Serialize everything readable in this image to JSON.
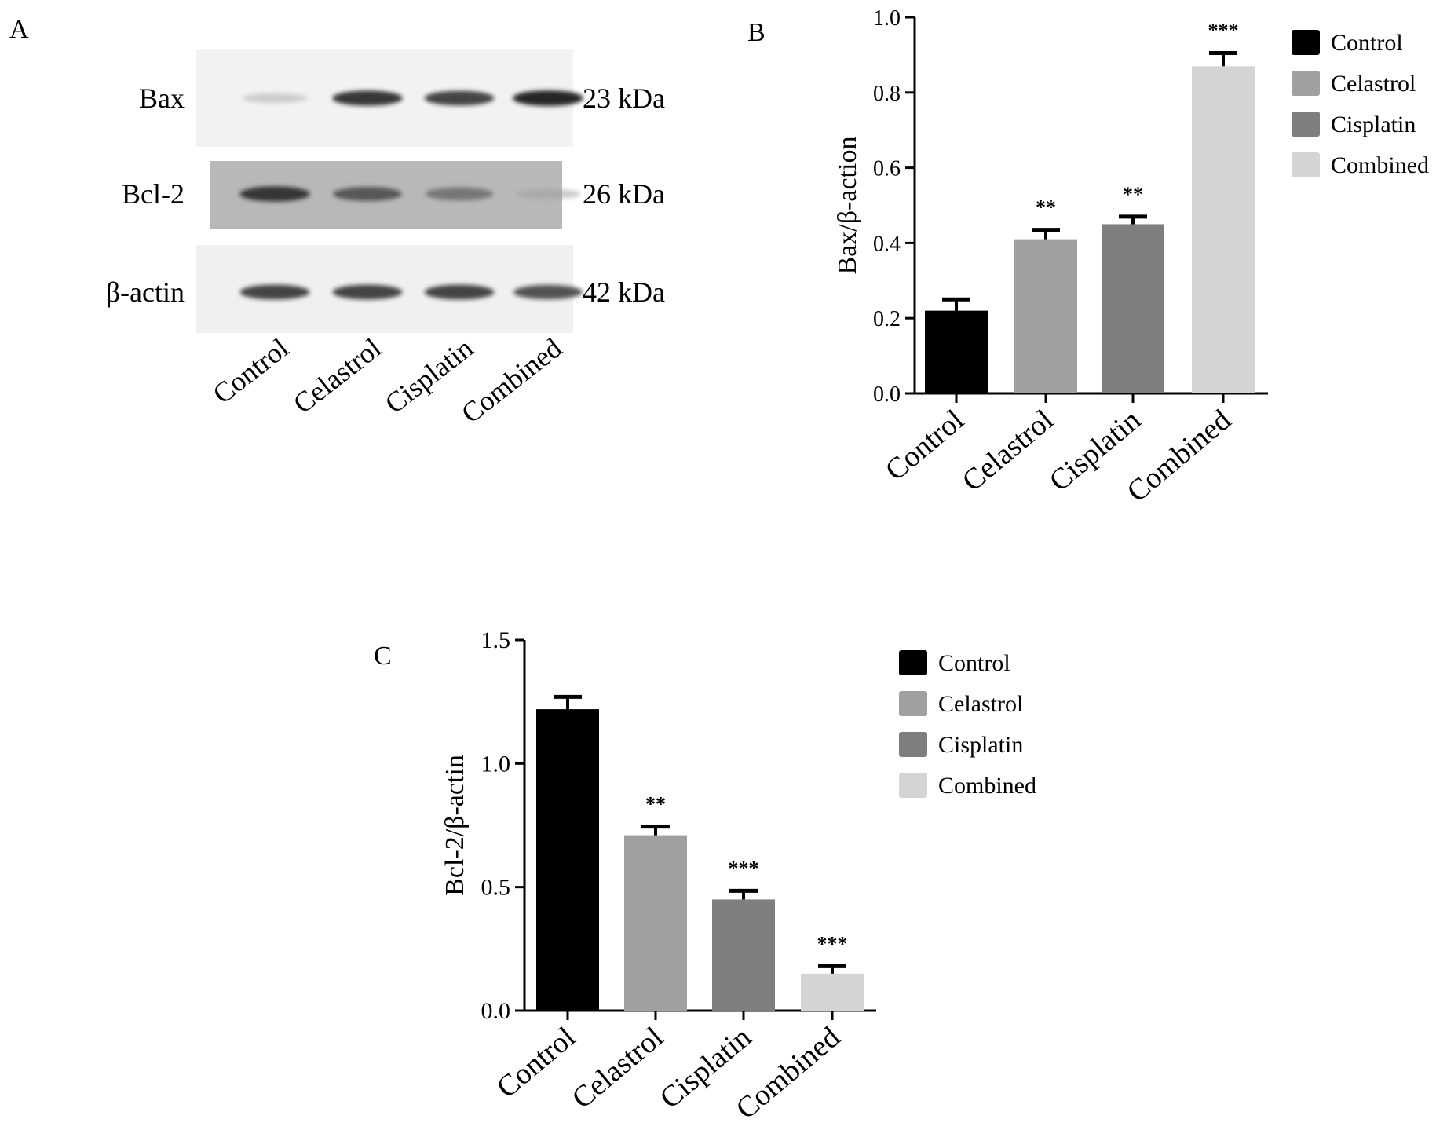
{
  "panel_labels": {
    "a": "A",
    "b": "B",
    "c": "C"
  },
  "colors": {
    "Control": "#000000",
    "Celastrol": "#a0a0a2",
    "Cisplatin": "#7e7e7e",
    "Combined": "#d4d4d4"
  },
  "blot": {
    "lanes": [
      "Control",
      "Celastrol",
      "Cisplatin",
      "Combined"
    ],
    "rows": [
      {
        "protein": "Bax",
        "size": "23 kDa",
        "intensity": [
          0.25,
          0.95,
          0.9,
          1.0
        ]
      },
      {
        "protein": "Bcl-2",
        "size": "26 kDa",
        "intensity": [
          0.95,
          0.8,
          0.65,
          0.3
        ]
      },
      {
        "protein": "β-actin",
        "size": "42 kDa",
        "intensity": [
          0.9,
          0.9,
          0.9,
          0.85
        ]
      }
    ]
  },
  "chart_data": [
    {
      "type": "bar",
      "panel": "B",
      "categories": [
        "Control",
        "Celastrol",
        "Cisplatin",
        "Combined"
      ],
      "values": [
        0.22,
        0.41,
        0.45,
        0.87
      ],
      "errors": [
        0.03,
        0.025,
        0.02,
        0.035
      ],
      "significance": [
        "",
        "**",
        "**",
        "***"
      ],
      "ylabel": "Bax/β-action",
      "ylim": [
        0,
        1.0
      ],
      "yticks": [
        "0.0",
        "0.2",
        "0.4",
        "0.6",
        "0.8",
        "1.0"
      ],
      "legend": [
        "Control",
        "Celastrol",
        "Cisplatin",
        "Combined"
      ],
      "legend_position": "right",
      "grid": false
    },
    {
      "type": "bar",
      "panel": "C",
      "categories": [
        "Control",
        "Celastrol",
        "Cisplatin",
        "Combined"
      ],
      "values": [
        1.22,
        0.71,
        0.45,
        0.15
      ],
      "errors": [
        0.05,
        0.035,
        0.035,
        0.03
      ],
      "significance": [
        "",
        "**",
        "***",
        "***"
      ],
      "ylabel": "Bcl-2/β-actin",
      "ylim": [
        0,
        1.5
      ],
      "yticks": [
        "0.0",
        "0.5",
        "1.0",
        "1.5"
      ],
      "legend": [
        "Control",
        "Celastrol",
        "Cisplatin",
        "Combined"
      ],
      "legend_position": "right",
      "grid": false
    }
  ]
}
